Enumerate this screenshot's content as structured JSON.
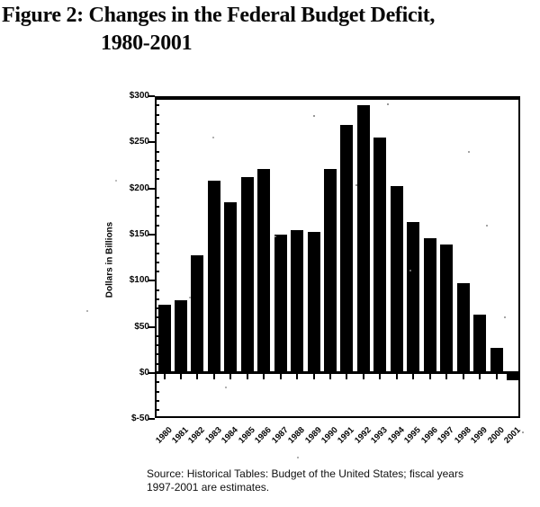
{
  "figure": {
    "title_line1": "Figure 2: Changes in the Federal Budget Deficit,",
    "title_line2": "1980-2001",
    "source_line1": "Source: Historical Tables: Budget of the United States; fiscal years",
    "source_line2": "1997-2001 are estimates."
  },
  "chart_data": {
    "type": "bar",
    "title": "Figure 2: Changes in the Federal Budget Deficit, 1980-2001",
    "xlabel": "",
    "ylabel": "Dollars in Billions",
    "ylim": [
      -50,
      300
    ],
    "ytick_interval": 50,
    "yminor_tick_interval": 10,
    "ytick_values": [
      300,
      250,
      200,
      150,
      100,
      50,
      0,
      -50
    ],
    "ytick_labels": [
      "$300",
      "$250",
      "$200",
      "$150",
      "$100",
      "$50",
      "$0",
      "$-50"
    ],
    "grid": false,
    "legend": "none",
    "bar_color": "#000000",
    "background_color": "#ffffff",
    "categories": [
      "1980",
      "1981",
      "1982",
      "1983",
      "1984",
      "1985",
      "1986",
      "1987",
      "1988",
      "1989",
      "1990",
      "1991",
      "1992",
      "1993",
      "1994",
      "1995",
      "1996",
      "1997",
      "1998",
      "1999",
      "2000",
      "2001"
    ],
    "values": [
      74,
      79,
      128,
      208,
      185,
      212,
      221,
      150,
      155,
      153,
      221,
      269,
      290,
      255,
      203,
      164,
      146,
      139,
      97,
      63,
      27,
      -8
    ]
  }
}
